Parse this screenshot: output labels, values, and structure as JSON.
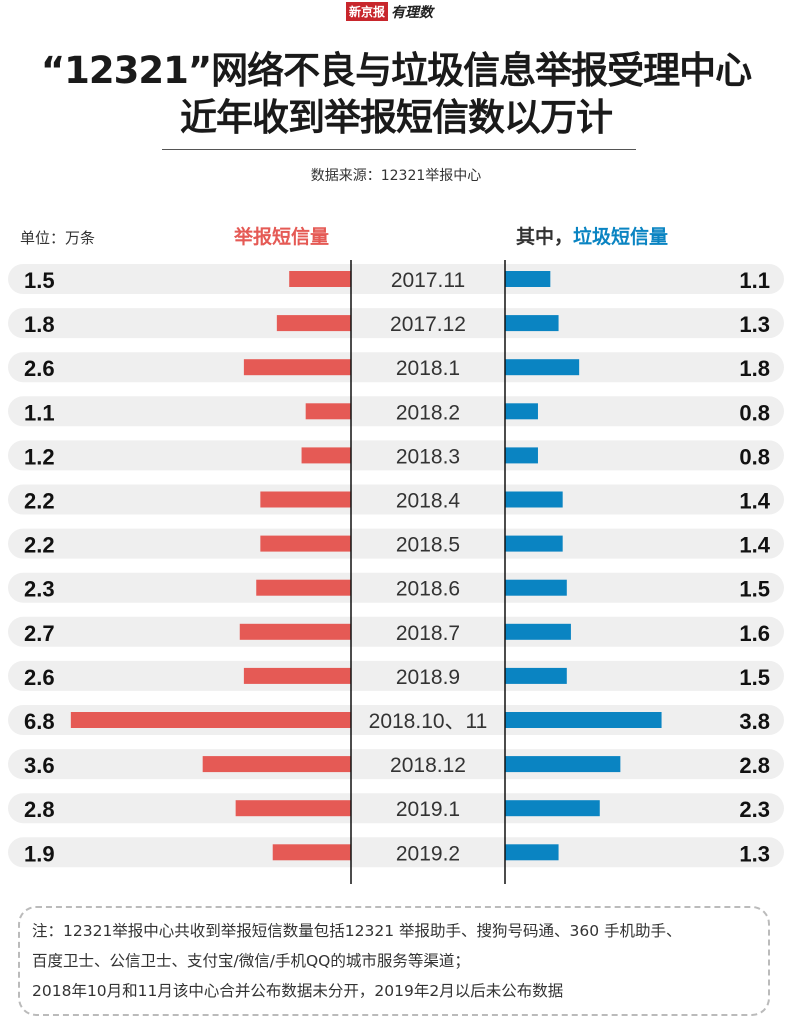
{
  "logo": {
    "brand": "新京报",
    "column": "有理数"
  },
  "title_lines": [
    "“12321”网络不良与垃圾信息举报受理中心",
    "近年收到举报短信数以万计"
  ],
  "source": "数据来源：12321举报中心",
  "unit": "单位：万条",
  "colors": {
    "reports": "#e55a55",
    "spam": "#0a84c2",
    "row_bg": "#efefef"
  },
  "chart_data": {
    "type": "bar",
    "orientation": "horizontal-butterfly",
    "categories": [
      "2017.11",
      "2017.12",
      "2018.1",
      "2018.2",
      "2018.3",
      "2018.4",
      "2018.5",
      "2018.6",
      "2018.7",
      "2018.9",
      "2018.10、11",
      "2018.12",
      "2019.1",
      "2019.2"
    ],
    "series": [
      {
        "name": "举报短信量",
        "side": "left",
        "color": "#e55a55",
        "values": [
          1.5,
          1.8,
          2.6,
          1.1,
          1.2,
          2.2,
          2.2,
          2.3,
          2.7,
          2.6,
          6.8,
          3.6,
          2.8,
          1.9
        ]
      },
      {
        "name": "垃圾短信量",
        "prefix": "其中，",
        "side": "right",
        "color": "#0a84c2",
        "values": [
          1.1,
          1.3,
          1.8,
          0.8,
          0.8,
          1.4,
          1.4,
          1.5,
          1.6,
          1.5,
          3.8,
          2.8,
          2.3,
          1.3
        ]
      }
    ],
    "unit": "万条"
  },
  "note_lines": [
    "注：12321举报中心共收到举报短信数量包括12321 举报助手、搜狗号码通、360 手机助手、",
    "百度卫士、公信卫士、支付宝/微信/手机QQ的城市服务等渠道；",
    "2018年10月和11月该中心合并公布数据未分开，2019年2月以后未公布数据"
  ]
}
